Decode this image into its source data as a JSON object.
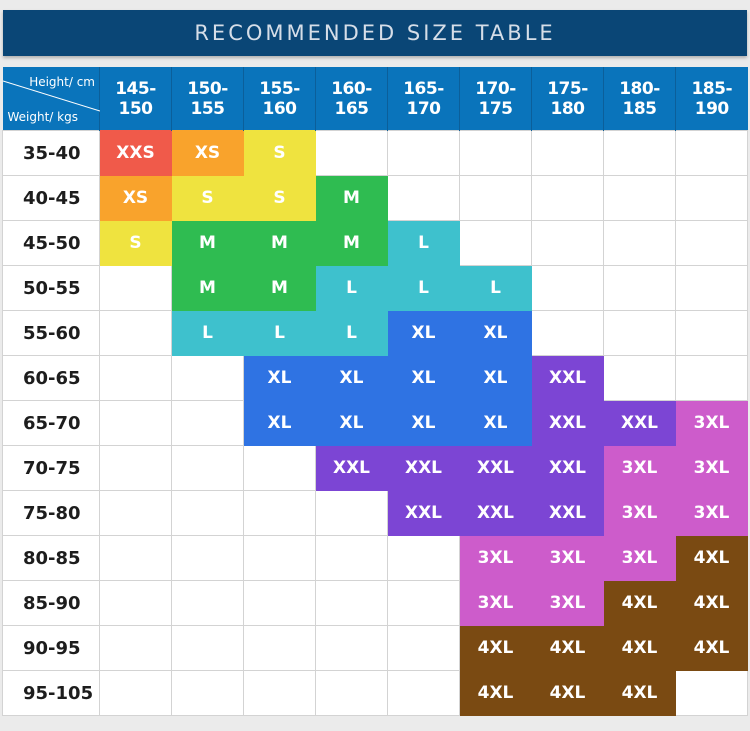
{
  "title": "RECOMMENDED SIZE TABLE",
  "corner": {
    "height_label": "Height/ cm",
    "weight_label": "Weight/ kgs"
  },
  "heights": [
    "145-150",
    "150-155",
    "155-160",
    "160-165",
    "165-170",
    "170-175",
    "175-180",
    "180-185",
    "185-190"
  ],
  "size_colors": {
    "XXS": "#f05a4a",
    "XS": "#f9a32c",
    "S": "#efe33f",
    "M": "#2fbc51",
    "L": "#3ec1cd",
    "XL": "#2f73e3",
    "XXL": "#7c45d4",
    "3XL": "#cd5ccb",
    "4XL": "#7a4a12"
  },
  "rows": [
    {
      "weight": "35-40",
      "sizes": [
        "XXS",
        "XS",
        "S",
        "",
        "",
        "",
        "",
        "",
        ""
      ]
    },
    {
      "weight": "40-45",
      "sizes": [
        "XS",
        "S",
        "S",
        "M",
        "",
        "",
        "",
        "",
        ""
      ]
    },
    {
      "weight": "45-50",
      "sizes": [
        "S",
        "M",
        "M",
        "M",
        "L",
        "",
        "",
        "",
        ""
      ]
    },
    {
      "weight": "50-55",
      "sizes": [
        "",
        "M",
        "M",
        "L",
        "L",
        "L",
        "",
        "",
        ""
      ]
    },
    {
      "weight": "55-60",
      "sizes": [
        "",
        "L",
        "L",
        "L",
        "XL",
        "XL",
        "",
        "",
        ""
      ]
    },
    {
      "weight": "60-65",
      "sizes": [
        "",
        "",
        "XL",
        "XL",
        "XL",
        "XL",
        "XXL",
        "",
        ""
      ]
    },
    {
      "weight": "65-70",
      "sizes": [
        "",
        "",
        "XL",
        "XL",
        "XL",
        "XL",
        "XXL",
        "XXL",
        "3XL"
      ]
    },
    {
      "weight": "70-75",
      "sizes": [
        "",
        "",
        "",
        "XXL",
        "XXL",
        "XXL",
        "XXL",
        "3XL",
        "3XL"
      ]
    },
    {
      "weight": "75-80",
      "sizes": [
        "",
        "",
        "",
        "",
        "XXL",
        "XXL",
        "XXL",
        "3XL",
        "3XL"
      ]
    },
    {
      "weight": "80-85",
      "sizes": [
        "",
        "",
        "",
        "",
        "",
        "3XL",
        "3XL",
        "3XL",
        "4XL"
      ]
    },
    {
      "weight": "85-90",
      "sizes": [
        "",
        "",
        "",
        "",
        "",
        "3XL",
        "3XL",
        "4XL",
        "4XL"
      ]
    },
    {
      "weight": "90-95",
      "sizes": [
        "",
        "",
        "",
        "",
        "",
        "4XL",
        "4XL",
        "4XL",
        "4XL"
      ]
    },
    {
      "weight": "95-105",
      "sizes": [
        "",
        "",
        "",
        "",
        "",
        "4XL",
        "4XL",
        "4XL",
        ""
      ]
    }
  ]
}
